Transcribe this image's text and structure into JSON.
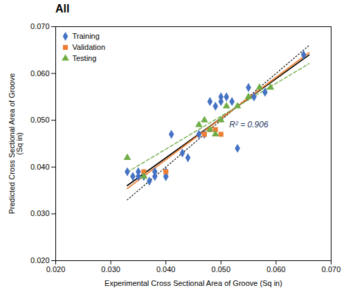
{
  "chart_data": {
    "type": "scatter",
    "title": "All",
    "xlabel": "Experimental Cross Sectional Area of Groove (Sq in)",
    "ylabel": "Predicted Cross Sectional Area of Groove\n(Sq in)",
    "xlim": [
      0.02,
      0.07
    ],
    "ylim": [
      0.02,
      0.07
    ],
    "xticks": [
      {
        "value": 0.02,
        "label": "0.020"
      },
      {
        "value": 0.03,
        "label": "0.030"
      },
      {
        "value": 0.04,
        "label": "0.040"
      },
      {
        "value": 0.05,
        "label": "0.050"
      },
      {
        "value": 0.06,
        "label": "0.060"
      },
      {
        "value": 0.07,
        "label": "0.070"
      }
    ],
    "yticks": [
      {
        "value": 0.02,
        "label": "0.020"
      },
      {
        "value": 0.03,
        "label": "0.030"
      },
      {
        "value": 0.04,
        "label": "0.040"
      },
      {
        "value": 0.05,
        "label": "0.050"
      },
      {
        "value": 0.06,
        "label": "0.060"
      },
      {
        "value": 0.07,
        "label": "0.070"
      }
    ],
    "legend": "upper left",
    "series": [
      {
        "name": "Training",
        "type": "scatter",
        "color": "#4472C4",
        "marker": "diamond",
        "x": [
          0.033,
          0.034,
          0.035,
          0.035,
          0.036,
          0.037,
          0.038,
          0.038,
          0.04,
          0.04,
          0.04,
          0.041,
          0.043,
          0.044,
          0.046,
          0.047,
          0.048,
          0.049,
          0.05,
          0.05,
          0.051,
          0.052,
          0.053,
          0.055,
          0.056,
          0.058,
          0.065
        ],
        "values": [
          0.039,
          0.038,
          0.038,
          0.039,
          0.038,
          0.037,
          0.039,
          0.038,
          0.039,
          0.038,
          0.038,
          0.047,
          0.043,
          0.042,
          0.047,
          0.047,
          0.054,
          0.053,
          0.054,
          0.055,
          0.055,
          0.054,
          0.044,
          0.057,
          0.055,
          0.056,
          0.064
        ]
      },
      {
        "name": "Validation",
        "type": "scatter",
        "color": "#ED7D31",
        "marker": "square",
        "x": [
          0.036,
          0.04,
          0.047,
          0.048,
          0.049,
          0.05
        ],
        "values": [
          0.039,
          0.039,
          0.047,
          0.048,
          0.048,
          0.047
        ]
      },
      {
        "name": "Testing",
        "type": "scatter",
        "color": "#70AD47",
        "marker": "triangle",
        "x": [
          0.033,
          0.036,
          0.046,
          0.047,
          0.048,
          0.049,
          0.05,
          0.051,
          0.053,
          0.055,
          0.057,
          0.059
        ],
        "values": [
          0.042,
          0.038,
          0.049,
          0.05,
          0.048,
          0.047,
          0.05,
          0.053,
          0.053,
          0.055,
          0.057,
          0.057
        ]
      },
      {
        "type": "line",
        "color": "black",
        "line_style": "solid",
        "x": [
          0.033,
          0.066
        ],
        "values": [
          0.0360423,
          0.0639534
        ]
      },
      {
        "type": "line",
        "color": "black",
        "line_style": "dotted",
        "x": [
          0.033,
          0.066
        ],
        "values": [
          0.033,
          0.066
        ]
      },
      {
        "type": "line",
        "color": "#ED7D31",
        "line_style": "solid",
        "x": [
          0.033,
          0.066
        ],
        "values": [
          0.0354125,
          0.0644347
        ]
      },
      {
        "type": "line",
        "color": "#70AD47",
        "line_style": "dashed",
        "x": [
          0.033,
          0.066
        ],
        "values": [
          0.0389119,
          0.0620921
        ]
      }
    ],
    "annotations": [
      {
        "text": "R² = 0.906",
        "x": 0.0515,
        "y": 0.0485,
        "color": "#1F3864"
      }
    ]
  }
}
